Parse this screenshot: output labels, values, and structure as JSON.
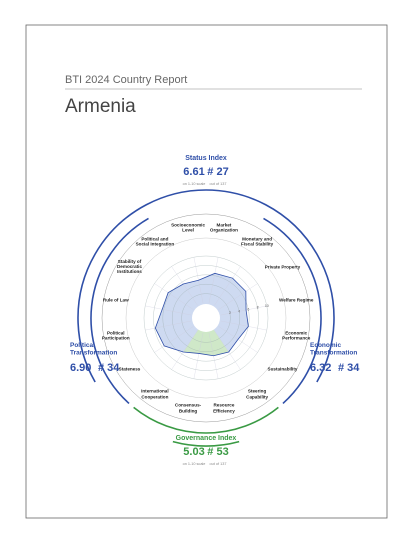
{
  "header": {
    "series": "BTI 2024 Country Report",
    "country": "Armenia"
  },
  "indices": {
    "status": {
      "title": "Status Index",
      "score": "6.61",
      "rank": "# 27",
      "scale_note": "on 1-10 scale",
      "rank_note": "out of 137"
    },
    "political": {
      "title": "Political Transformation",
      "score": "6.90",
      "rank": "# 34"
    },
    "economic": {
      "title": "Economic Transformation",
      "score": "6.32",
      "rank": "# 34"
    },
    "governance": {
      "title": "Governance Index",
      "score": "5.03",
      "rank": "# 53",
      "scale_note": "on 1-10 scale",
      "rank_note": "out of 137"
    }
  },
  "radar": {
    "rlim": [
      0,
      10
    ],
    "rticks": [
      2,
      4,
      6,
      8,
      10
    ],
    "colors": {
      "status": "#2f4fa8",
      "governance": "#3a9a44",
      "fill": "#c9d6f0",
      "governance_fill": "#cfe8c8"
    },
    "economic": [
      {
        "label": "Socioeconomic Level",
        "value": 5
      },
      {
        "label": "Market Organization",
        "value": 6.5
      },
      {
        "label": "Monetary and Fiscal Stability",
        "value": 7
      },
      {
        "label": "Private Property",
        "value": 7
      },
      {
        "label": "Welfare Regime",
        "value": 5.5
      },
      {
        "label": "Economic Performance",
        "value": 6
      },
      {
        "label": "Sustainability",
        "value": 5
      }
    ],
    "governance": [
      {
        "label": "Steering Capability",
        "value": 5.5
      },
      {
        "label": "Resource Efficiency",
        "value": 5
      },
      {
        "label": "Consensus-Building",
        "value": 4.5
      },
      {
        "label": "International Cooperation",
        "value": 5.5
      }
    ],
    "political": [
      {
        "label": "Stateness",
        "value": 7.5
      },
      {
        "label": "Political Participation",
        "value": 7.8
      },
      {
        "label": "Rule of Law",
        "value": 6.3
      },
      {
        "label": "Stability of Democratic Institutions",
        "value": 6.5
      },
      {
        "label": "Political and Social Integration",
        "value": 5.5
      }
    ]
  }
}
